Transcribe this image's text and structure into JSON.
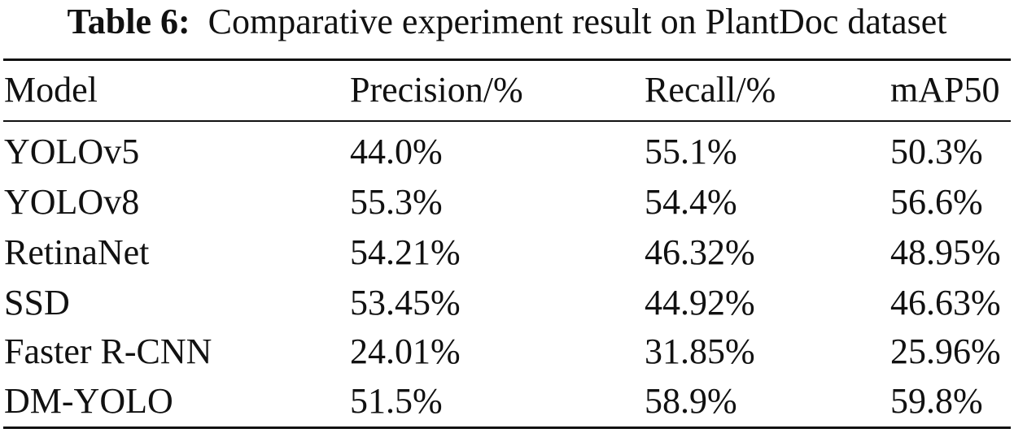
{
  "caption": {
    "label": "Table 6:",
    "text": "Comparative experiment result on PlantDoc dataset"
  },
  "table": {
    "headers": [
      "Model",
      "Precision/%",
      "Recall/%",
      "mAP50"
    ],
    "rows": [
      [
        "YOLOv5",
        "44.0%",
        "55.1%",
        "50.3%"
      ],
      [
        "YOLOv8",
        "55.3%",
        "54.4%",
        "56.6%"
      ],
      [
        "RetinaNet",
        "54.21%",
        "46.32%",
        "48.95%"
      ],
      [
        "SSD",
        "53.45%",
        "44.92%",
        "46.63%"
      ],
      [
        "Faster R-CNN",
        "24.01%",
        "31.85%",
        "25.96%"
      ],
      [
        "DM-YOLO",
        "51.5%",
        "58.9%",
        "59.8%"
      ]
    ]
  }
}
